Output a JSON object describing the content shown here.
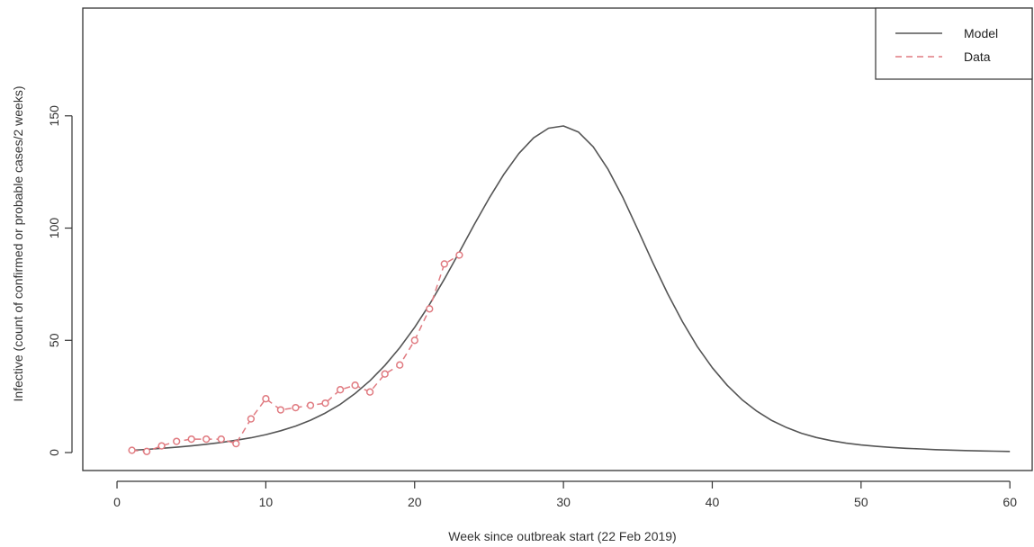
{
  "chart_data": {
    "type": "line",
    "title": "",
    "xlabel": "Week since outbreak start (22 Feb 2019)",
    "ylabel": "Infective (count of confirmed or probable cases/2 weeks)",
    "xlim": [
      -2.3,
      61.5
    ],
    "ylim": [
      -8,
      198
    ],
    "x_ticks": [
      0,
      10,
      20,
      30,
      40,
      50,
      60
    ],
    "y_ticks": [
      0,
      50,
      100,
      150
    ],
    "grid": false,
    "legend_position": "top-right",
    "colors": {
      "model": "#555555",
      "data": "#e07a80",
      "frame": "#333333"
    },
    "series": [
      {
        "name": "Model",
        "style": "solid",
        "x": [
          1,
          2,
          3,
          4,
          5,
          6,
          7,
          8,
          9,
          10,
          11,
          12,
          13,
          14,
          15,
          16,
          17,
          18,
          19,
          20,
          21,
          22,
          23,
          24,
          25,
          26,
          27,
          28,
          29,
          30,
          31,
          32,
          33,
          34,
          35,
          36,
          37,
          38,
          39,
          40,
          41,
          42,
          43,
          44,
          45,
          46,
          47,
          48,
          49,
          50,
          51,
          52,
          53,
          54,
          55,
          56,
          57,
          58,
          59,
          60
        ],
        "values": [
          1,
          1.4,
          1.9,
          2.4,
          3,
          3.7,
          4.5,
          5.5,
          6.6,
          8,
          9.7,
          11.8,
          14.4,
          17.6,
          21.5,
          26.3,
          32,
          38.8,
          46.7,
          55.8,
          66,
          77.3,
          89.3,
          101.5,
          113.2,
          124,
          133.2,
          140.2,
          144.5,
          145.5,
          142.8,
          136.2,
          126.2,
          113.5,
          99.3,
          84.7,
          70.8,
          58.3,
          47.2,
          37.8,
          30,
          23.6,
          18.4,
          14.3,
          11.1,
          8.6,
          6.7,
          5.3,
          4.2,
          3.4,
          2.8,
          2.3,
          1.9,
          1.6,
          1.3,
          1.1,
          0.9,
          0.75,
          0.6,
          0.5
        ]
      },
      {
        "name": "Data",
        "style": "dashed-with-points",
        "x": [
          1,
          2,
          3,
          4,
          5,
          6,
          7,
          8,
          9,
          10,
          11,
          12,
          13,
          14,
          15,
          16,
          17,
          18,
          19,
          20,
          21,
          22,
          23
        ],
        "values": [
          1,
          0.5,
          3,
          5,
          6,
          6,
          6,
          4,
          15,
          24,
          19,
          20,
          21,
          22,
          28,
          30,
          27,
          35,
          39,
          50,
          64,
          84,
          88
        ]
      }
    ],
    "legend": {
      "model_label": "Model",
      "data_label": "Data"
    }
  }
}
